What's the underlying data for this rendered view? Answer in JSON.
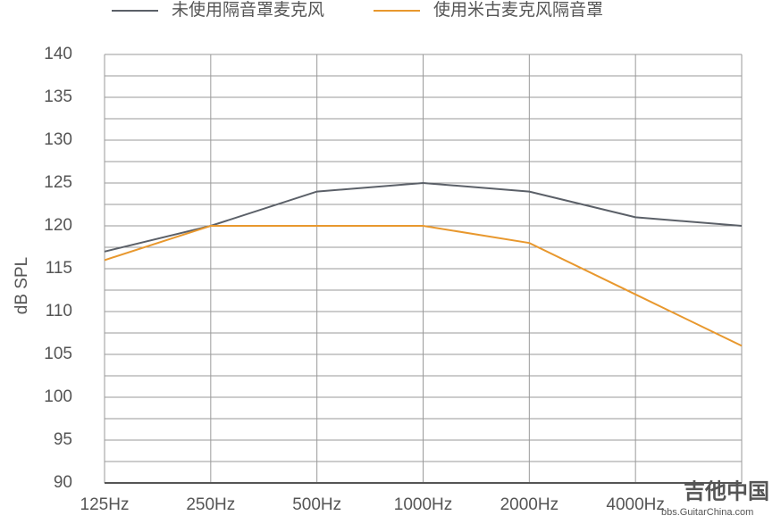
{
  "chart_data": {
    "type": "line",
    "y_label": "dB SPL",
    "categories": [
      "125Hz",
      "250Hz",
      "500Hz",
      "1000Hz",
      "2000Hz",
      "4000Hz",
      null
    ],
    "series": [
      {
        "name": "未使用隔音罩麦克风",
        "color": "#5b6068",
        "values": [
          117,
          120,
          124,
          125,
          124,
          121,
          120
        ]
      },
      {
        "name": "使用米古麦克风隔音罩",
        "color": "#e8982e",
        "values": [
          116,
          120,
          120,
          120,
          118,
          112,
          106
        ]
      }
    ],
    "ylim": [
      90,
      140
    ],
    "yticks": [
      90,
      95,
      100,
      105,
      110,
      115,
      120,
      125,
      130,
      135,
      140
    ],
    "grid": true,
    "legend": "top",
    "watermark": [
      "吉他中国",
      "bbs.GuitarChina.com"
    ]
  }
}
